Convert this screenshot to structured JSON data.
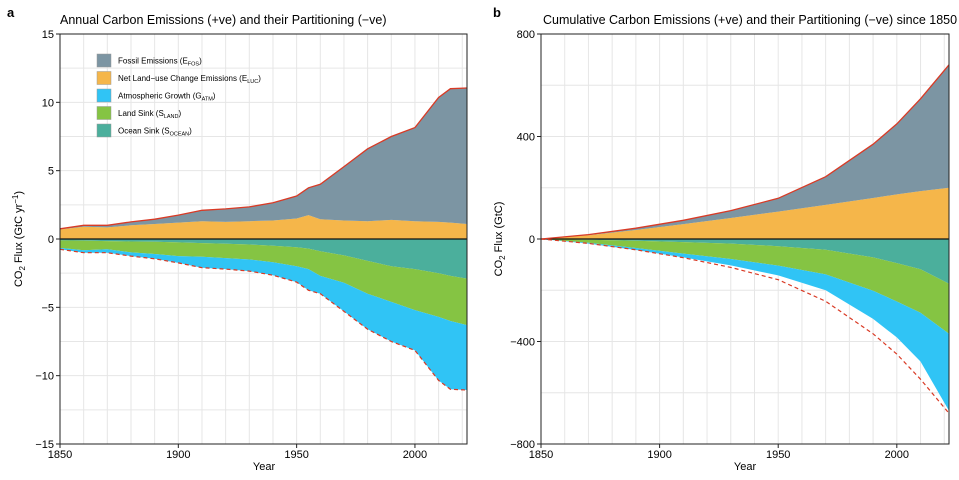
{
  "chart_data": [
    {
      "type": "area",
      "panel": "a",
      "title": "Annual Carbon Emissions (+ve) and their Partitioning (−ve)",
      "xlabel": "Year",
      "ylabel": "CO₂ Flux (GtC yr⁻¹)",
      "xlim": [
        1850,
        2022
      ],
      "ylim": [
        -15,
        15
      ],
      "x_ticks": [
        1850,
        1900,
        1950,
        2000
      ],
      "y_ticks": [
        -15,
        -10,
        -5,
        0,
        5,
        10,
        15
      ],
      "y_tick_labels": [
        "−15",
        "−10",
        "−5",
        "0",
        "5",
        "10",
        "15"
      ],
      "grid": true,
      "legend": {
        "placement": "top-left",
        "entries": [
          {
            "main": "Fossil Emissions (E",
            "sub": "FOS",
            "tail": ")",
            "color": "#7c95a3"
          },
          {
            "main": "Net Land−use Change Emissions (E",
            "sub": "LUC",
            "tail": ")",
            "color": "#f5b64a"
          },
          {
            "main": "Atmospheric Growth (G",
            "sub": "ATM",
            "tail": ")",
            "color": "#30c4f5"
          },
          {
            "main": "Land Sink (S",
            "sub": "LAND",
            "tail": ")",
            "color": "#85c443"
          },
          {
            "main": "Ocean Sink (S",
            "sub": "OCEAN",
            "tail": ")",
            "color": "#4baf9c"
          }
        ]
      },
      "x": [
        1850,
        1860,
        1870,
        1880,
        1890,
        1900,
        1910,
        1920,
        1930,
        1940,
        1950,
        1955,
        1960,
        1970,
        1980,
        1990,
        2000,
        2010,
        2015,
        2022
      ],
      "series": [
        {
          "name": "Fossil Emissions (E_FOS)",
          "color": "#7c95a3",
          "values": [
            0.05,
            0.1,
            0.15,
            0.25,
            0.35,
            0.55,
            0.8,
            0.95,
            1.05,
            1.3,
            1.65,
            2.0,
            2.55,
            3.95,
            5.3,
            6.1,
            6.85,
            9.1,
            9.8,
            9.95
          ]
        },
        {
          "name": "Net Land-use Change Emissions (E_LUC)",
          "color": "#f5b64a",
          "values": [
            0.7,
            0.9,
            0.85,
            1.0,
            1.1,
            1.2,
            1.3,
            1.25,
            1.3,
            1.35,
            1.5,
            1.75,
            1.45,
            1.35,
            1.3,
            1.4,
            1.3,
            1.25,
            1.2,
            1.1
          ]
        },
        {
          "name": "Ocean Sink (S_OCEAN)",
          "color": "#4baf9c",
          "values": [
            -0.1,
            -0.12,
            -0.15,
            -0.18,
            -0.2,
            -0.25,
            -0.3,
            -0.35,
            -0.4,
            -0.5,
            -0.6,
            -0.7,
            -0.9,
            -1.2,
            -1.6,
            -2.0,
            -2.2,
            -2.5,
            -2.7,
            -2.9
          ]
        },
        {
          "name": "Land Sink (S_LAND)",
          "color": "#85c443",
          "values": [
            -0.55,
            -0.7,
            -0.6,
            -0.8,
            -0.9,
            -1.0,
            -1.0,
            -1.05,
            -1.1,
            -1.2,
            -1.4,
            -1.5,
            -1.8,
            -2.0,
            -2.4,
            -2.6,
            -3.0,
            -3.2,
            -3.3,
            -3.4
          ]
        },
        {
          "name": "Atmospheric Growth (G_ATM)",
          "color": "#30c4f5",
          "values": [
            -0.1,
            -0.18,
            -0.25,
            -0.27,
            -0.35,
            -0.5,
            -0.8,
            -0.8,
            -0.85,
            -0.95,
            -1.15,
            -1.55,
            -1.3,
            -2.1,
            -2.6,
            -2.9,
            -2.95,
            -4.65,
            -5.0,
            -4.75
          ]
        }
      ],
      "total_emissions_line": {
        "color": "#d93a25",
        "style": "solid"
      },
      "budget_imbalance_line": {
        "color": "#d93a25",
        "style": "dashed"
      }
    },
    {
      "type": "area",
      "panel": "b",
      "title": "Cumulative Carbon Emissions (+ve) and their Partitioning (−ve) since 1850",
      "xlabel": "Year",
      "ylabel": "CO₂ Flux (GtC)",
      "xlim": [
        1850,
        2022
      ],
      "ylim": [
        -800,
        800
      ],
      "x_ticks": [
        1850,
        1900,
        1950,
        2000
      ],
      "y_ticks": [
        -800,
        -400,
        0,
        400,
        800
      ],
      "y_tick_labels": [
        "−800",
        "−400",
        "0",
        "400",
        "800"
      ],
      "grid": true,
      "x": [
        1850,
        1870,
        1890,
        1910,
        1930,
        1950,
        1970,
        1990,
        2000,
        2010,
        2022
      ],
      "series": [
        {
          "name": "Fossil Emissions (E_FOS)",
          "color": "#7c95a3",
          "values": [
            0,
            2,
            7,
            15,
            29,
            52,
            110,
            210,
            275,
            360,
            480
          ]
        },
        {
          "name": "Net Land-use Change Emissions (E_LUC)",
          "color": "#f5b64a",
          "values": [
            0,
            15,
            35,
            58,
            82,
            107,
            133,
            160,
            174,
            187,
            200
          ]
        },
        {
          "name": "Ocean Sink (S_OCEAN)",
          "color": "#4baf9c",
          "values": [
            0,
            -3,
            -7,
            -12,
            -18,
            -28,
            -42,
            -72,
            -94,
            -118,
            -175
          ]
        },
        {
          "name": "Land Sink (S_LAND)",
          "color": "#85c443",
          "values": [
            0,
            -12,
            -28,
            -45,
            -60,
            -76,
            -96,
            -130,
            -150,
            -170,
            -195
          ]
        },
        {
          "name": "Atmospheric Growth (G_ATM)",
          "color": "#30c4f5",
          "values": [
            0,
            -3,
            -8,
            -15,
            -25,
            -38,
            -62,
            -110,
            -140,
            -190,
            -300
          ]
        }
      ],
      "total_emissions_line": {
        "color": "#d93a25",
        "style": "solid"
      },
      "budget_imbalance_line": {
        "color": "#d93a25",
        "style": "dashed"
      }
    }
  ]
}
